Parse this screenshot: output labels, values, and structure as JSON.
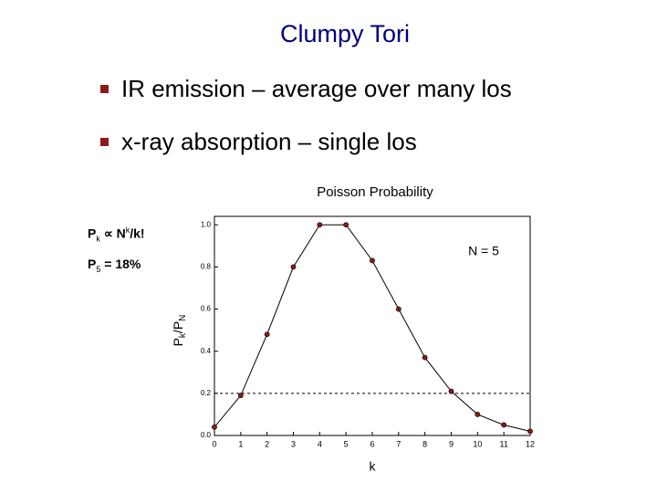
{
  "title": "Clumpy Tori",
  "bullets": [
    "IR emission – average over many los",
    "x-ray absorption – single los"
  ],
  "formula": [
    "P",
    "k",
    " ∝ N",
    "k",
    "/k!"
  ],
  "p5_note": [
    "P",
    "5",
    " = 18%"
  ],
  "chart_data": {
    "type": "line",
    "title": "Poisson Probability",
    "x_label": "k",
    "y_label": [
      "P",
      "k",
      "/P",
      "N"
    ],
    "annotation": "N = 5",
    "x": [
      0,
      1,
      2,
      3,
      4,
      5,
      6,
      7,
      8,
      9,
      10,
      11,
      12
    ],
    "values": [
      0.04,
      0.19,
      0.48,
      0.8,
      1.0,
      1.0,
      0.83,
      0.6,
      0.37,
      0.21,
      0.1,
      0.05,
      0.02
    ],
    "color": "#8b1a1a",
    "reference_line": 0.2,
    "xlim": [
      0,
      12
    ],
    "ylim": [
      0,
      1.04
    ],
    "xticks": [
      0,
      1,
      2,
      3,
      4,
      5,
      6,
      7,
      8,
      9,
      10,
      11,
      12
    ],
    "yticks": [
      {
        "value": 0,
        "label": "0.0"
      },
      0.2,
      0.4,
      0.6,
      0.8,
      {
        "value": 1,
        "label": "1.0"
      }
    ]
  }
}
